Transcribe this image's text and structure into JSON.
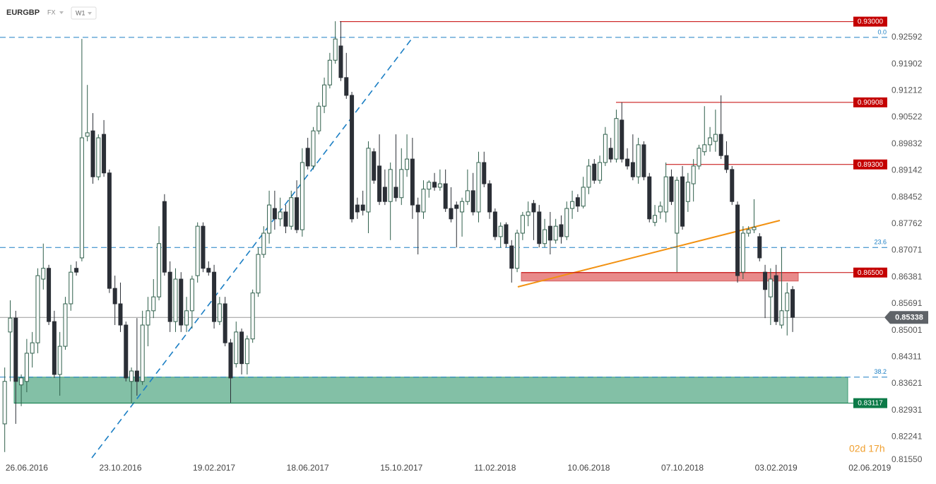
{
  "toolbar": {
    "symbol": "EURGBP",
    "market": "FX",
    "interval": "W1"
  },
  "chart_data": {
    "type": "candlestick",
    "x": [
      "29.05.2016",
      "05.06.2016",
      "12.06.2016",
      "19.06.2016",
      "26.06.2016",
      "03.07.2016",
      "10.07.2016",
      "17.07.2016",
      "24.07.2016",
      "31.07.2016",
      "07.08.2016",
      "14.08.2016",
      "21.08.2016",
      "28.08.2016",
      "04.09.2016",
      "11.09.2016",
      "18.09.2016",
      "25.09.2016",
      "02.10.2016",
      "09.10.2016",
      "16.10.2016",
      "23.10.2016",
      "30.10.2016",
      "06.11.2016",
      "13.11.2016",
      "20.11.2016",
      "27.11.2016",
      "04.12.2016",
      "11.12.2016",
      "18.12.2016",
      "25.12.2016",
      "01.01.2017",
      "08.01.2017",
      "15.01.2017",
      "22.01.2017",
      "29.01.2017",
      "05.02.2017",
      "12.02.2017",
      "19.02.2017",
      "26.02.2017",
      "05.03.2017",
      "12.03.2017",
      "19.03.2017",
      "26.03.2017",
      "02.04.2017",
      "09.04.2017",
      "16.04.2017",
      "23.04.2017",
      "30.04.2017",
      "07.05.2017",
      "14.05.2017",
      "21.05.2017",
      "28.05.2017",
      "04.06.2017",
      "11.06.2017",
      "18.06.2017",
      "25.06.2017",
      "02.07.2017",
      "09.07.2017",
      "16.07.2017",
      "23.07.2017",
      "30.07.2017",
      "06.08.2017",
      "13.08.2017",
      "20.08.2017",
      "27.08.2017",
      "03.09.2017",
      "10.09.2017",
      "17.09.2017",
      "24.09.2017",
      "01.10.2017",
      "08.10.2017",
      "15.10.2017",
      "22.10.2017",
      "29.10.2017",
      "05.11.2017",
      "12.11.2017",
      "19.11.2017",
      "26.11.2017",
      "03.12.2017",
      "10.12.2017",
      "17.12.2017",
      "24.12.2017",
      "31.12.2017",
      "07.01.2018",
      "14.01.2018",
      "21.01.2018",
      "28.01.2018",
      "04.02.2018",
      "11.02.2018",
      "18.02.2018",
      "25.02.2018",
      "04.03.2018",
      "11.03.2018",
      "18.03.2018",
      "25.03.2018",
      "01.04.2018",
      "08.04.2018",
      "15.04.2018",
      "22.04.2018",
      "29.04.2018",
      "06.05.2018",
      "13.05.2018",
      "20.05.2018",
      "27.05.2018",
      "03.06.2018",
      "10.06.2018",
      "17.06.2018",
      "24.06.2018",
      "01.07.2018",
      "08.07.2018",
      "15.07.2018",
      "22.07.2018",
      "29.07.2018",
      "05.08.2018",
      "12.08.2018",
      "19.08.2018",
      "26.08.2018",
      "02.09.2018",
      "09.09.2018",
      "16.09.2018",
      "23.09.2018",
      "30.09.2018",
      "07.10.2018",
      "14.10.2018",
      "21.10.2018",
      "28.10.2018",
      "04.11.2018",
      "11.11.2018",
      "18.11.2018",
      "25.11.2018",
      "02.12.2018",
      "09.12.2018",
      "16.12.2018",
      "23.12.2018",
      "30.12.2018",
      "06.01.2019",
      "13.01.2019",
      "20.01.2019",
      "27.01.2019",
      "03.02.2019",
      "10.02.2019",
      "17.02.2019",
      "24.02.2019"
    ],
    "open": [
      0.8258,
      0.8496,
      0.8532,
      0.8359,
      0.8368,
      0.8441,
      0.8468,
      0.8633,
      0.8661,
      0.8523,
      0.8386,
      0.8459,
      0.8569,
      0.8661,
      0.8688,
      0.9003,
      0.9017,
      0.8898,
      0.9008,
      0.8908,
      0.8609,
      0.8569,
      0.8514,
      0.8368,
      0.8395,
      0.8368,
      0.8514,
      0.8551,
      0.8587,
      0.8834,
      0.8651,
      0.8523,
      0.8633,
      0.8514,
      0.8551,
      0.8642,
      0.877,
      0.8661,
      0.8651,
      0.8523,
      0.8569,
      0.8468,
      0.8414,
      0.8496,
      0.8414,
      0.8478,
      0.8597,
      0.8697,
      0.8752,
      0.8816,
      0.8789,
      0.8807,
      0.877,
      0.8844,
      0.8761,
      0.8972,
      0.8926,
      0.9017,
      0.9081,
      0.9136,
      0.92,
      0.9237,
      0.9155,
      0.9109,
      0.8825,
      0.8825,
      0.8807,
      0.8963,
      0.8926,
      0.8871,
      0.8834,
      0.8871,
      0.8844,
      0.8917,
      0.8944,
      0.8825,
      0.8807,
      0.8866,
      0.8884,
      0.8871,
      0.888,
      0.8816,
      0.8825,
      0.8807,
      0.8834,
      0.8862,
      0.8807,
      0.8935,
      0.888,
      0.8807,
      0.8743,
      0.8774,
      0.8719,
      0.8661,
      0.8752,
      0.8798,
      0.8829,
      0.8807,
      0.8725,
      0.877,
      0.8734,
      0.8774,
      0.8743,
      0.8816,
      0.8844,
      0.8822,
      0.8871,
      0.8931,
      0.8889,
      0.8935,
      0.8972,
      0.8944,
      0.9045,
      0.8944,
      0.8935,
      0.8898,
      0.8981,
      0.8898,
      0.878,
      0.8807,
      0.8807,
      0.8898,
      0.8752,
      0.8898,
      0.8834,
      0.888,
      0.8926,
      0.8963,
      0.8981,
      0.899,
      0.9008,
      0.8953,
      0.8917,
      0.8825,
      0.8651,
      0.8752,
      0.8761,
      0.8743,
      0.8651,
      0.8587,
      0.8642,
      0.8514,
      0.8551,
      0.8606
    ],
    "high": [
      0.8404,
      0.8578,
      0.8551,
      0.8386,
      0.8478,
      0.8496,
      0.8661,
      0.8725,
      0.867,
      0.8551,
      0.8496,
      0.8587,
      0.867,
      0.8679,
      0.9255,
      0.9136,
      0.9063,
      0.9008,
      0.9045,
      0.8917,
      0.8642,
      0.8624,
      0.8523,
      0.8404,
      0.8532,
      0.8551,
      0.8587,
      0.8633,
      0.877,
      0.8853,
      0.8679,
      0.8661,
      0.8651,
      0.8587,
      0.8642,
      0.878,
      0.878,
      0.8679,
      0.867,
      0.8587,
      0.8587,
      0.8478,
      0.8523,
      0.8505,
      0.8487,
      0.8606,
      0.8715,
      0.877,
      0.8862,
      0.8862,
      0.8844,
      0.8825,
      0.8862,
      0.8889,
      0.8972,
      0.8999,
      0.9027,
      0.9091,
      0.9155,
      0.9219,
      0.9301,
      0.9301,
      0.9219,
      0.9118,
      0.8844,
      0.8862,
      0.899,
      0.8972,
      0.9008,
      0.8917,
      0.8935,
      0.9008,
      0.8972,
      0.9008,
      0.8999,
      0.8844,
      0.8889,
      0.8889,
      0.8908,
      0.8917,
      0.8917,
      0.8871,
      0.8834,
      0.8844,
      0.8917,
      0.8908,
      0.8963,
      0.8963,
      0.8889,
      0.8816,
      0.878,
      0.878,
      0.8734,
      0.8761,
      0.8807,
      0.8834,
      0.8838,
      0.8825,
      0.8789,
      0.8807,
      0.8789,
      0.8798,
      0.8834,
      0.8862,
      0.8853,
      0.8898,
      0.8944,
      0.8944,
      0.8953,
      0.9027,
      0.8999,
      0.9072,
      0.9091,
      0.8972,
      0.9008,
      0.8999,
      0.899,
      0.8908,
      0.8825,
      0.8834,
      0.8935,
      0.8917,
      0.8898,
      0.8926,
      0.8908,
      0.8944,
      0.8981,
      0.9081,
      0.9027,
      0.9072,
      0.9109,
      0.899,
      0.8926,
      0.8834,
      0.877,
      0.877,
      0.884,
      0.8752,
      0.867,
      0.8661,
      0.867,
      0.8715,
      0.8624,
      0.8615
    ],
    "low": [
      0.8185,
      0.8368,
      0.8258,
      0.8304,
      0.834,
      0.8404,
      0.8441,
      0.8606,
      0.8514,
      0.8377,
      0.8331,
      0.845,
      0.8551,
      0.8642,
      0.8679,
      0.899,
      0.888,
      0.8889,
      0.8898,
      0.8597,
      0.8514,
      0.8496,
      0.8368,
      0.8313,
      0.8331,
      0.8359,
      0.8459,
      0.8532,
      0.8578,
      0.8642,
      0.8496,
      0.8496,
      0.8496,
      0.8496,
      0.8505,
      0.8624,
      0.8651,
      0.8642,
      0.8505,
      0.8514,
      0.8459,
      0.8313,
      0.8404,
      0.8386,
      0.8386,
      0.8468,
      0.8587,
      0.8688,
      0.8725,
      0.8761,
      0.877,
      0.8752,
      0.8761,
      0.8752,
      0.8743,
      0.8917,
      0.8917,
      0.9008,
      0.9063,
      0.9127,
      0.9191,
      0.9146,
      0.91,
      0.878,
      0.8789,
      0.8798,
      0.8752,
      0.888,
      0.8825,
      0.8825,
      0.8734,
      0.8834,
      0.8825,
      0.8898,
      0.8789,
      0.8697,
      0.8789,
      0.8844,
      0.8862,
      0.8862,
      0.8807,
      0.878,
      0.8715,
      0.8743,
      0.8825,
      0.8798,
      0.878,
      0.8871,
      0.8789,
      0.8734,
      0.8715,
      0.8715,
      0.8624,
      0.8651,
      0.8734,
      0.877,
      0.8734,
      0.8715,
      0.8715,
      0.8697,
      0.8725,
      0.8725,
      0.8734,
      0.8789,
      0.8807,
      0.8816,
      0.8853,
      0.888,
      0.888,
      0.8926,
      0.8935,
      0.8935,
      0.8935,
      0.8917,
      0.8889,
      0.888,
      0.8889,
      0.878,
      0.877,
      0.8789,
      0.878,
      0.8825,
      0.8651,
      0.8761,
      0.8807,
      0.8834,
      0.8917,
      0.8953,
      0.8963,
      0.8963,
      0.8944,
      0.8908,
      0.8825,
      0.8624,
      0.8633,
      0.8743,
      0.8752,
      0.8679,
      0.8532,
      0.8514,
      0.8514,
      0.8505,
      0.8487,
      0.8496
    ],
    "close": [
      0.8368,
      0.8532,
      0.8368,
      0.8377,
      0.8441,
      0.8468,
      0.8642,
      0.8661,
      0.8523,
      0.8386,
      0.8459,
      0.8569,
      0.8651,
      0.8651,
      0.8999,
      0.9012,
      0.8898,
      0.8999,
      0.8908,
      0.8609,
      0.8569,
      0.8514,
      0.8377,
      0.8395,
      0.8368,
      0.8514,
      0.8551,
      0.8587,
      0.8725,
      0.8651,
      0.8523,
      0.8633,
      0.8514,
      0.8551,
      0.8633,
      0.877,
      0.8661,
      0.8651,
      0.8523,
      0.8569,
      0.8468,
      0.8377,
      0.8496,
      0.8414,
      0.8478,
      0.8597,
      0.8697,
      0.8752,
      0.8825,
      0.8789,
      0.8807,
      0.877,
      0.8844,
      0.8761,
      0.8935,
      0.8926,
      0.9017,
      0.9081,
      0.9136,
      0.92,
      0.9255,
      0.9155,
      0.9109,
      0.8789,
      0.8807,
      0.8811,
      0.8972,
      0.8889,
      0.8834,
      0.8834,
      0.8917,
      0.8844,
      0.8917,
      0.8944,
      0.8825,
      0.8807,
      0.8866,
      0.8884,
      0.8871,
      0.888,
      0.8816,
      0.8789,
      0.8816,
      0.8834,
      0.8862,
      0.8807,
      0.8935,
      0.888,
      0.8807,
      0.8743,
      0.877,
      0.8725,
      0.8661,
      0.8752,
      0.8798,
      0.8807,
      0.8807,
      0.8725,
      0.8761,
      0.8734,
      0.877,
      0.8743,
      0.8816,
      0.8834,
      0.8822,
      0.8871,
      0.8926,
      0.8889,
      0.8935,
      0.9008,
      0.8944,
      0.9049,
      0.8944,
      0.8926,
      0.8898,
      0.8981,
      0.8898,
      0.8789,
      0.8798,
      0.8822,
      0.8898,
      0.8834,
      0.8889,
      0.877,
      0.8884,
      0.8926,
      0.8972,
      0.8981,
      0.8999,
      0.9008,
      0.8953,
      0.8917,
      0.8834,
      0.8642,
      0.8752,
      0.8761,
      0.8767,
      0.8688,
      0.8606,
      0.8633,
      0.8523,
      0.8551,
      0.8597,
      0.8534
    ],
    "up_color": "#ffffff",
    "down_color": "#2b2f36",
    "outline_color": "#2f5f4b",
    "xlim": [
      "23.05.2016",
      "26.06.2019"
    ],
    "xticks": [
      "26.06.2016",
      "23.10.2016",
      "19.02.2017",
      "18.06.2017",
      "15.10.2017",
      "11.02.2018",
      "10.06.2018",
      "07.10.2018",
      "03.02.2019",
      "02.06.2019"
    ],
    "ylim": [
      0.8148,
      0.9356
    ],
    "yticks": [
      0.92592,
      0.91902,
      0.91212,
      0.90522,
      0.89832,
      0.89142,
      0.88452,
      0.87762,
      0.87071,
      0.86381,
      0.85691,
      0.85001,
      0.84311,
      0.83621,
      0.82931,
      0.82241,
      {
        "value": 0.8155,
        "label": "0.81550"
      }
    ],
    "levels": [
      {
        "value": 0.93,
        "label": "0.93000",
        "color": "#c40000"
      },
      {
        "value": 0.90908,
        "label": "0.90908",
        "color": "#c40000"
      },
      {
        "value": 0.893,
        "label": "0.89300",
        "color": "#c40000"
      },
      {
        "value": 0.865,
        "label": "0.86500",
        "color": "#c40000"
      },
      {
        "value": 0.83117,
        "label": "0.83117",
        "color": "#0b7a47"
      }
    ],
    "fib_levels": [
      {
        "label": "0.0",
        "price": 0.92592
      },
      {
        "label": "23.6",
        "price": 0.8715
      },
      {
        "label": "38.2",
        "price": 0.8379
      }
    ],
    "fib_color": "#1c7fc4",
    "last_price": 0.85338,
    "timer": "02d 17h"
  }
}
